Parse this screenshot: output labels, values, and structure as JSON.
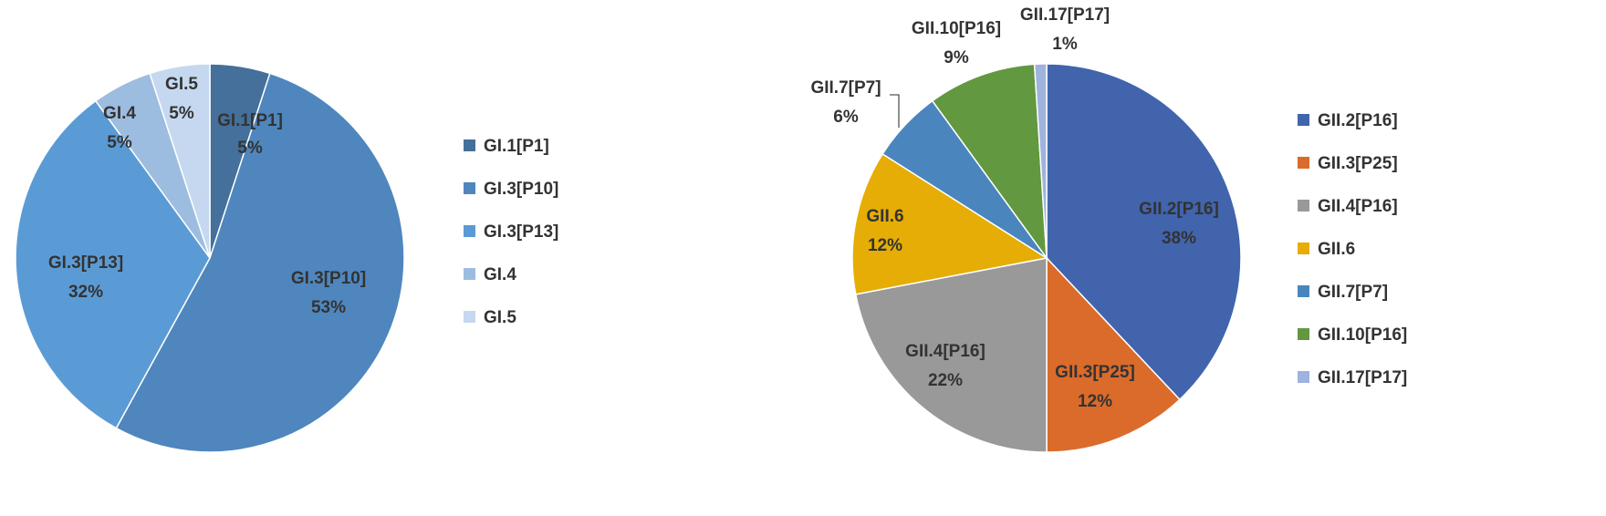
{
  "chart_data": [
    {
      "type": "pie",
      "categories": [
        "GI.1[P1]",
        "GI.3[P10]",
        "GI.3[P13]",
        "GI.4",
        "GI.5"
      ],
      "values": [
        5,
        53,
        32,
        5,
        5
      ],
      "value_labels": [
        "5%",
        "53%",
        "32%",
        "5%",
        "5%"
      ],
      "colors": [
        "#44709b",
        "#4f86bd",
        "#5b9bd5",
        "#9dbde0",
        "#c5d8ef"
      ],
      "legend": {
        "position": "right",
        "entries": [
          "GI.1[P1]",
          "GI.3[P10]",
          "GI.3[P13]",
          "GI.4",
          "GI.5"
        ]
      }
    },
    {
      "type": "pie",
      "categories": [
        "GII.2[P16]",
        "GII.3[P25]",
        "GII.4[P16]",
        "GII.6",
        "GII.7[P7]",
        "GII.10[P16]",
        "GII.17[P17]"
      ],
      "values": [
        38,
        12,
        22,
        12,
        6,
        9,
        1
      ],
      "value_labels": [
        "38%",
        "12%",
        "22%",
        "12%",
        "6%",
        "9%",
        "1%"
      ],
      "colors": [
        "#4164ac",
        "#da6b2b",
        "#999999",
        "#e5ad05",
        "#4a86bd",
        "#62983f",
        "#9eb3dd"
      ],
      "legend": {
        "position": "right",
        "entries": [
          "GII.2[P16]",
          "GII.3[P25]",
          "GII.4[P16]",
          "GII.6",
          "GII.7[P7]",
          "GII.10[P16]",
          "GII.17[P17]"
        ]
      }
    }
  ]
}
